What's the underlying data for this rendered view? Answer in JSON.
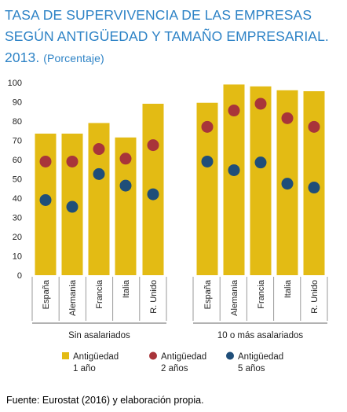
{
  "title_line1": "TASA DE SUPERVIVENCIA DE LAS EMPRESAS",
  "title_line2": "SEGÚN ANTIGÜEDAD Y TAMAÑO EMPRESARIAL.",
  "title_line3": "2013.",
  "subtitle": "(Porcentaje)",
  "source": "Fuente: Eurostat (2016) y elaboración propia.",
  "colors": {
    "title": "#2e83c6",
    "bar": "#e3bb14",
    "dot_red": "#a8343a",
    "dot_blue": "#1f4e79",
    "axis_text": "#222222",
    "rule": "#666666"
  },
  "chart_data": {
    "type": "bar",
    "ylim": [
      0,
      100
    ],
    "yticks": [
      0,
      10,
      20,
      30,
      40,
      50,
      60,
      70,
      80,
      90,
      100
    ],
    "grid": false,
    "legend_position": "bottom",
    "groups": [
      {
        "label": "Sin asalariados",
        "categories": [
          "España",
          "Alemania",
          "Francia",
          "Italia",
          "R. Unido"
        ]
      },
      {
        "label": "10 o más asalariados",
        "categories": [
          "España",
          "Alemania",
          "Francia",
          "Italia",
          "R. Unido"
        ]
      }
    ],
    "series": [
      {
        "name": "Antigüedad 1 año",
        "legend_line1": "Antigüedad",
        "legend_line2": "1 año",
        "marker": "bar",
        "color": "#e3bb14",
        "values": [
          73.5,
          73.5,
          79,
          71.5,
          89,
          89.5,
          99,
          98,
          96,
          95.5
        ]
      },
      {
        "name": "Antigüedad 2 años",
        "legend_line1": "Antigüedad",
        "legend_line2": "2 años",
        "marker": "dot",
        "color": "#a8343a",
        "values": [
          59,
          59,
          65.5,
          60.5,
          67.5,
          77,
          85.5,
          89,
          81.5,
          77
        ]
      },
      {
        "name": "Antigüedad 5 años",
        "legend_line1": "Antigüedad",
        "legend_line2": "5 años",
        "marker": "dot",
        "color": "#1f4e79",
        "values": [
          39,
          35.5,
          52.5,
          46.5,
          42,
          59,
          54.5,
          58.5,
          47.5,
          45.5
        ]
      }
    ]
  }
}
